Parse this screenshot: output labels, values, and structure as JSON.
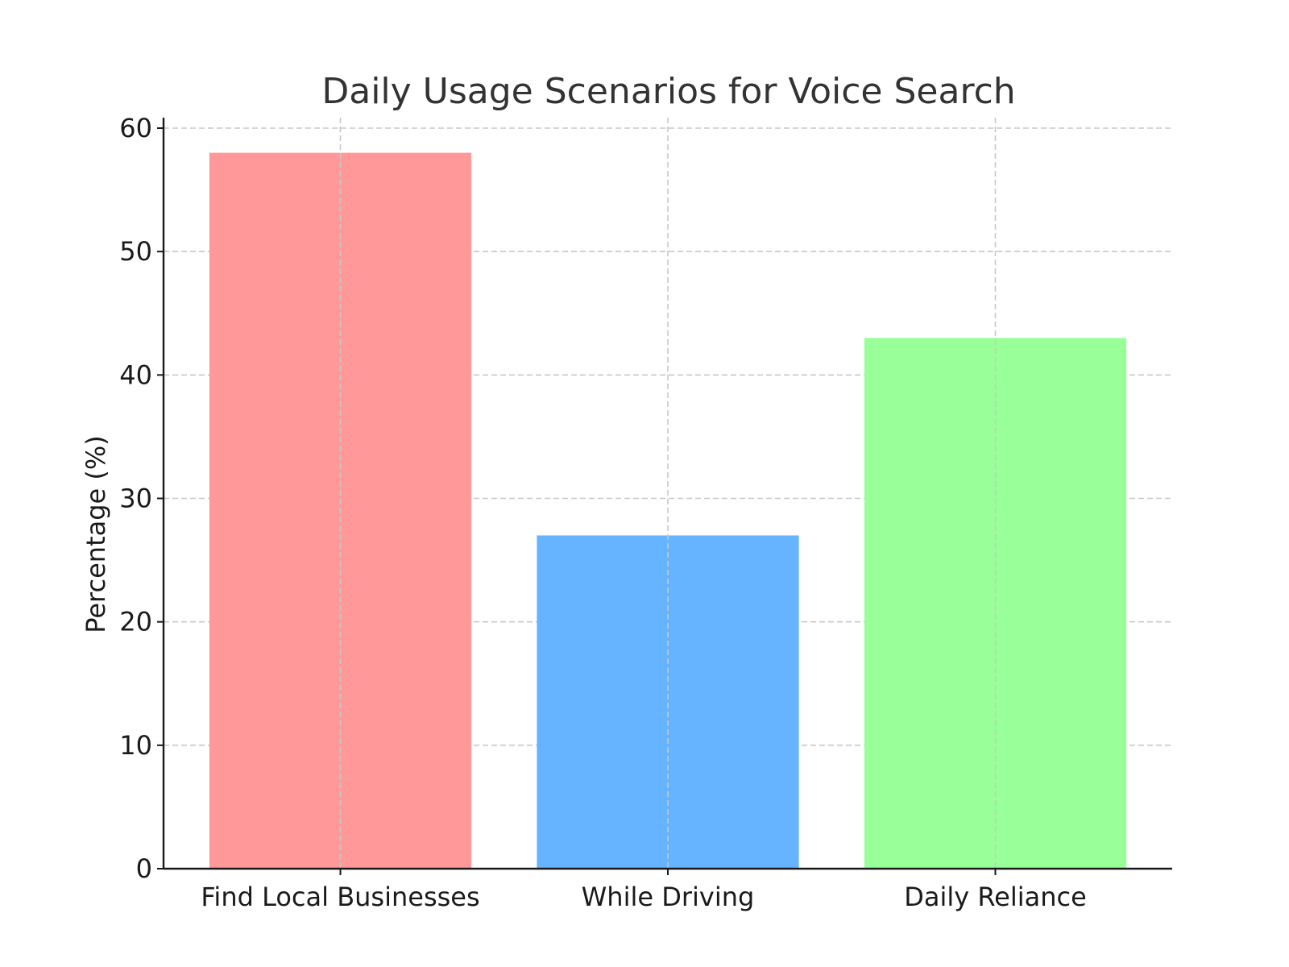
{
  "chart_data": {
    "type": "bar",
    "title": "Daily Usage Scenarios for Voice Search",
    "xlabel": "",
    "ylabel": "Percentage (%)",
    "categories": [
      "Find Local Businesses",
      "While Driving",
      "Daily Reliance"
    ],
    "values": [
      58,
      27,
      43
    ],
    "colors": [
      "#ff9999",
      "#66b3ff",
      "#99ff99"
    ],
    "ylim": [
      0,
      60
    ],
    "yticks": [
      0,
      10,
      20,
      30,
      40,
      50,
      60
    ],
    "grid": true,
    "legend": "none"
  }
}
